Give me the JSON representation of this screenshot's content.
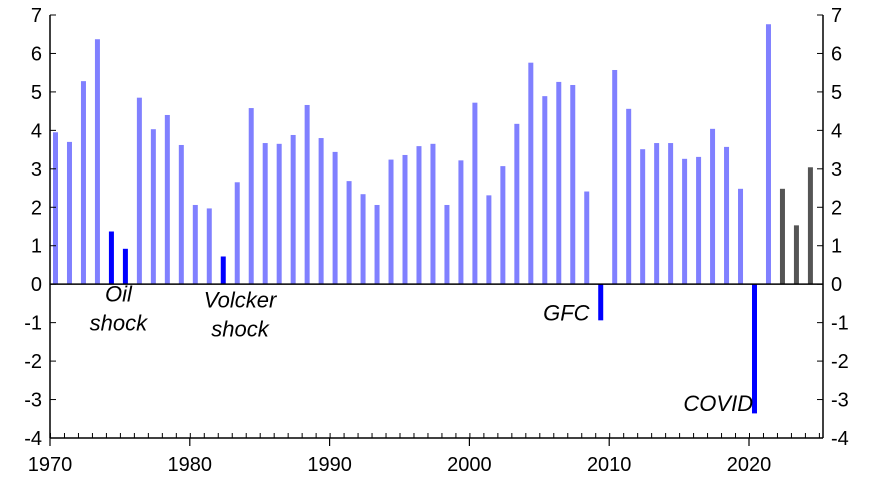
{
  "chart_data": {
    "type": "bar",
    "title": "",
    "xlabel": "",
    "ylabel": "",
    "ylim": [
      -4,
      7
    ],
    "yticks": [
      -4,
      -3,
      -2,
      -1,
      0,
      1,
      2,
      3,
      4,
      5,
      6,
      7
    ],
    "xlim": [
      1970,
      2025
    ],
    "xticks": [
      1970,
      1980,
      1990,
      2000,
      2010,
      2020
    ],
    "grid": false,
    "y_axes": "left and right",
    "colors": {
      "growth": "#8080ff",
      "recession": "#0000ff",
      "forecast": "#555555"
    },
    "series": [
      {
        "name": "",
        "color_key": "growth",
        "x": [
          1970,
          1971,
          1972,
          1973,
          1976,
          1977,
          1978,
          1979,
          1980,
          1981,
          1983,
          1984,
          1985,
          1986,
          1987,
          1988,
          1989,
          1990,
          1991,
          1992,
          1993,
          1994,
          1995,
          1996,
          1997,
          1998,
          1999,
          2000,
          2001,
          2002,
          2003,
          2004,
          2005,
          2006,
          2007,
          2008,
          2010,
          2011,
          2012,
          2013,
          2014,
          2015,
          2016,
          2017,
          2018,
          2019,
          2021
        ],
        "values": [
          3.95,
          3.7,
          5.28,
          6.37,
          4.85,
          4.03,
          4.4,
          3.62,
          2.06,
          1.97,
          2.65,
          4.58,
          3.67,
          3.65,
          3.88,
          4.66,
          3.8,
          3.44,
          2.68,
          2.34,
          2.06,
          3.24,
          3.36,
          3.59,
          3.65,
          2.06,
          3.22,
          4.72,
          2.31,
          3.07,
          4.17,
          5.76,
          4.89,
          5.26,
          5.18,
          2.41,
          5.57,
          4.56,
          3.51,
          3.67,
          3.67,
          3.26,
          3.31,
          4.04,
          3.57,
          2.48,
          6.76
        ]
      },
      {
        "name": "",
        "color_key": "recession",
        "x": [
          1974,
          1975,
          1982,
          2009,
          2020
        ],
        "values": [
          1.37,
          0.92,
          0.72,
          -0.94,
          -3.36
        ]
      },
      {
        "name": "",
        "color_key": "forecast",
        "x": [
          2022,
          2023,
          2024
        ],
        "values": [
          2.48,
          1.53,
          3.04
        ]
      }
    ],
    "annotations": [
      {
        "lines": [
          "Oil",
          "shock"
        ],
        "year": 1974.5,
        "y": -0.45,
        "anchor": "middle"
      },
      {
        "lines": [
          "Volcker",
          "shock"
        ],
        "year": 1983.2,
        "y": -0.6,
        "anchor": "middle"
      },
      {
        "lines": [
          "GFC"
        ],
        "year": 2008.2,
        "y": -0.95,
        "anchor": "end"
      },
      {
        "lines": [
          "COVID"
        ],
        "year": 2019.9,
        "y": -3.3,
        "anchor": "end"
      }
    ]
  }
}
